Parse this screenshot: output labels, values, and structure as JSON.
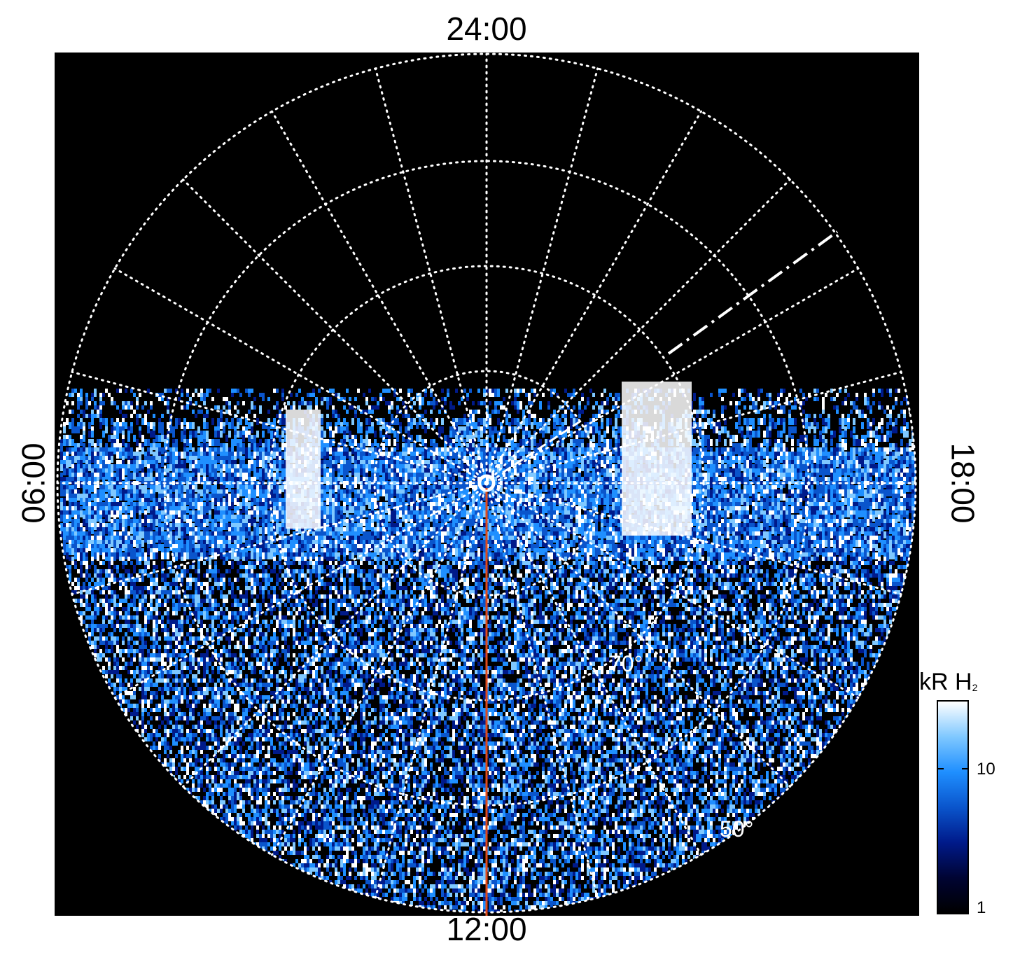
{
  "local_time_labels": {
    "top": "24:00",
    "bottom": "12:00",
    "left": "06:00",
    "right": "18:00"
  },
  "latitude_labels": {
    "inner": "70°",
    "outer": "50°"
  },
  "colorbar": {
    "title_main": "kR H",
    "title_sub": "2",
    "tick_high": "10",
    "tick_low": "1",
    "colors": [
      "#000000",
      "#000433",
      "#001a8a",
      "#0a55cc",
      "#1f8fff",
      "#7fc8ff",
      "#ffffff"
    ]
  },
  "colors": {
    "background": "#000000",
    "grid": "#ffffff",
    "meridian_line": "#e04a1a"
  }
}
